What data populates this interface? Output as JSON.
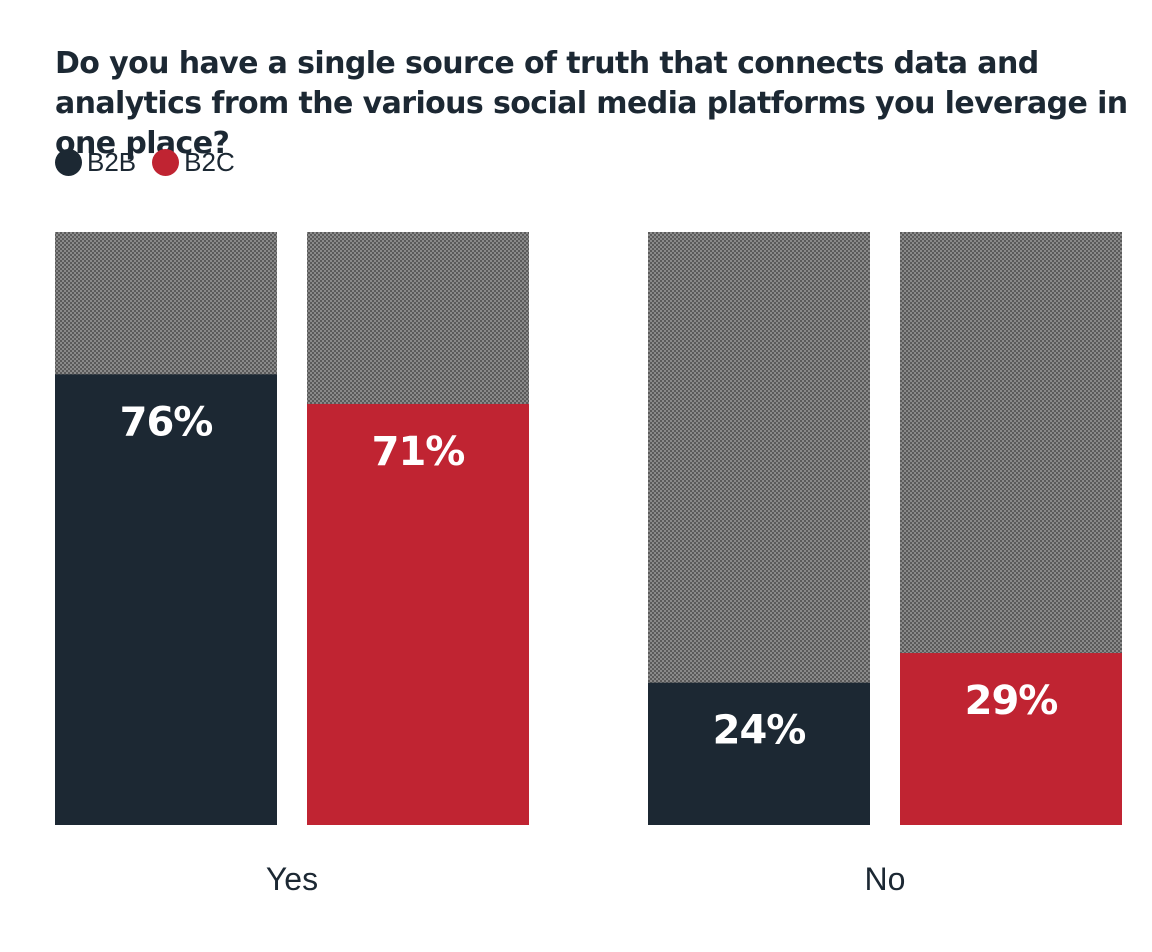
{
  "title": "Do you have a single source of truth that connects data and analytics from the various social media platforms you leverage in one place?",
  "legend": [
    {
      "label": "B2B",
      "color": "#1c2833"
    },
    {
      "label": "B2C",
      "color": "#c02432"
    }
  ],
  "chart_data": {
    "type": "bar",
    "categories": [
      "Yes",
      "No"
    ],
    "series": [
      {
        "name": "B2B",
        "color": "#1c2833",
        "values": [
          76,
          24
        ],
        "labels": [
          "76%",
          "24%"
        ]
      },
      {
        "name": "B2C",
        "color": "#c02432",
        "values": [
          71,
          29
        ],
        "labels": [
          "71%",
          "29%"
        ]
      }
    ],
    "ylim": [
      0,
      100
    ],
    "background_pattern": "dotted-gray"
  }
}
